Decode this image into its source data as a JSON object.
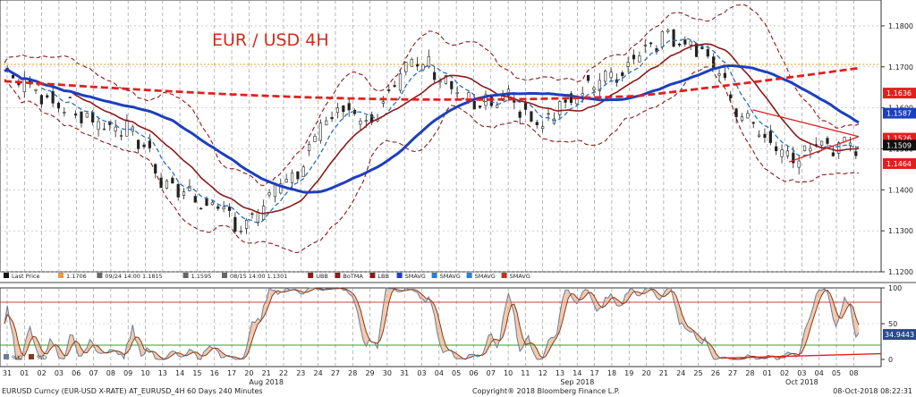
{
  "chart_data": [
    {
      "type": "candlestick",
      "title": "EUR / USD 4H",
      "ylim": [
        1.12,
        1.185
      ],
      "y_ticks": [
        "1.1800",
        "1.1700",
        "1.1600",
        "1.1500",
        "1.1400",
        "1.1300",
        "1.1200"
      ],
      "x_day_labels": [
        "31",
        "01",
        "02",
        "03",
        "06",
        "07",
        "08",
        "09",
        "10",
        "13",
        "14",
        "15",
        "16",
        "17",
        "20",
        "21",
        "22",
        "23",
        "24",
        "27",
        "28",
        "29",
        "30",
        "31",
        "03",
        "04",
        "05",
        "06",
        "07",
        "10",
        "11",
        "12",
        "13",
        "14",
        "17",
        "18",
        "19",
        "20",
        "21",
        "24",
        "25",
        "26",
        "27",
        "28",
        "01",
        "02",
        "03",
        "04",
        "05",
        "08"
      ],
      "month_labels": [
        "Aug 2018",
        "Sep 2018",
        "Oct 2018"
      ],
      "price_path": [
        [
          0,
          1.169
        ],
        [
          2,
          1.164
        ],
        [
          4,
          1.16
        ],
        [
          6,
          1.156
        ],
        [
          8,
          1.154
        ],
        [
          9,
          1.15
        ],
        [
          10,
          1.142
        ],
        [
          12,
          1.138
        ],
        [
          14,
          1.134
        ],
        [
          15,
          1.131
        ],
        [
          16,
          1.134
        ],
        [
          17,
          1.14
        ],
        [
          18,
          1.142
        ],
        [
          19,
          1.147
        ],
        [
          20,
          1.156
        ],
        [
          21,
          1.16
        ],
        [
          22,
          1.16
        ],
        [
          23,
          1.156
        ],
        [
          24,
          1.163
        ],
        [
          25,
          1.168
        ],
        [
          26,
          1.171
        ],
        [
          27,
          1.17
        ],
        [
          28,
          1.166
        ],
        [
          29,
          1.162
        ],
        [
          30,
          1.16
        ],
        [
          31,
          1.161
        ],
        [
          32,
          1.162
        ],
        [
          33,
          1.158
        ],
        [
          34,
          1.155
        ],
        [
          35,
          1.16
        ],
        [
          36,
          1.163
        ],
        [
          37,
          1.166
        ],
        [
          38,
          1.167
        ],
        [
          39,
          1.168
        ],
        [
          40,
          1.174
        ],
        [
          41,
          1.176
        ],
        [
          42,
          1.178
        ],
        [
          43,
          1.176
        ],
        [
          44,
          1.175
        ],
        [
          45,
          1.17
        ],
        [
          46,
          1.16
        ],
        [
          47,
          1.157
        ],
        [
          48,
          1.153
        ],
        [
          49,
          1.149
        ],
        [
          50,
          1.147
        ],
        [
          51,
          1.151
        ],
        [
          52,
          1.151
        ],
        [
          53,
          1.15
        ],
        [
          54,
          1.151
        ]
      ],
      "horizontal_level": 1.1706,
      "badges": [
        {
          "value": "1.1636",
          "color": "#e02020"
        },
        {
          "value": "1.1587",
          "color": "#1c3fbf"
        },
        {
          "value": "1.1526",
          "color": "#e02020"
        },
        {
          "value": "1.1509",
          "color": "#111111"
        },
        {
          "value": "1.1464",
          "color": "#e02020"
        }
      ],
      "legend": [
        {
          "label": "Last Price",
          "color": "#111111"
        },
        {
          "label": "1.1706",
          "color": "#e8a020"
        },
        {
          "label": "09/24 14:00 1.1815",
          "color": "#666666"
        },
        {
          "label": "1.1595",
          "color": "#666666"
        },
        {
          "label": "08/15 14:00 1.1301",
          "color": "#666666"
        },
        {
          "label": "UBB",
          "color": "#8b1a1a"
        },
        {
          "label": "BoTMA",
          "color": "#8b1a1a"
        },
        {
          "label": "LBB",
          "color": "#8b1a1a"
        },
        {
          "label": "SMAVG",
          "color": "#1c3fbf"
        },
        {
          "label": "SMAVG",
          "color": "#2a7fd4"
        },
        {
          "label": "SMAVG",
          "color": "#2a7fd4"
        },
        {
          "label": "SMAVG",
          "color": "#e02020"
        }
      ],
      "colors": {
        "ma_fast": "#2a6fb8",
        "ma_mid": "#8b1a1a",
        "ma_slow": "#1c3fbf",
        "ma_long": "#e02020",
        "bands": "#8b1a1a",
        "trend": "#e02020",
        "level": "#e8a020"
      }
    },
    {
      "type": "line",
      "ylim": [
        0,
        100
      ],
      "y_ticks": [
        "100",
        "50",
        "0"
      ],
      "levels": [
        80,
        20
      ],
      "badges": [
        {
          "value": "34.9443",
          "color": "#2a4a8a"
        }
      ],
      "legend": [
        {
          "label": "%K",
          "color": "#6a7a9a"
        },
        {
          "label": "%D",
          "color": "#8b3a1a"
        }
      ]
    }
  ],
  "footer": {
    "left": "EURUSD Curncy (EUR-USD X-RATE) AT_EURUSD_4H 60 Days 240 Minutes",
    "center": "Copyright® 2018 Bloomberg Finance L.P.",
    "right": "08-Oct-2018 08:22:31"
  }
}
